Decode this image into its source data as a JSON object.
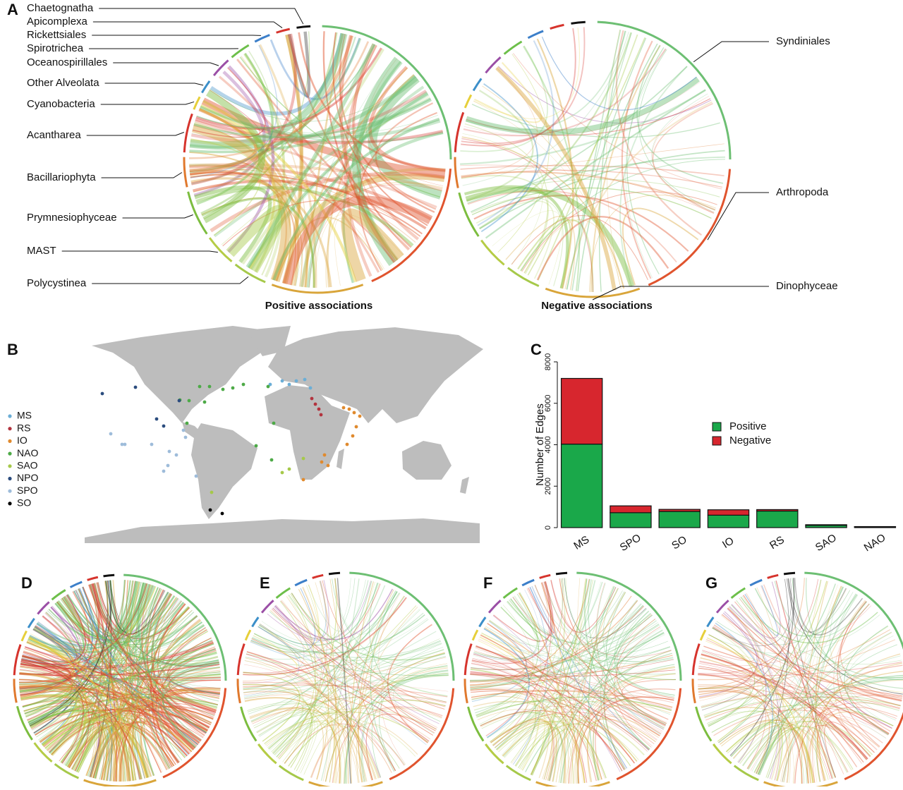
{
  "panel_labels": [
    "A",
    "B",
    "C",
    "D",
    "E",
    "F",
    "G"
  ],
  "panel_a": {
    "left_labels": [
      "Chaetognatha",
      "Apicomplexa",
      "Rickettsiales",
      "Spirotrichea",
      "Oceanospirillales",
      "Other Alveolata",
      "Cyanobacteria",
      "Acantharea",
      "Bacillariophyta",
      "Prymnesiophyceae",
      "MAST",
      "Polycystinea"
    ],
    "right_labels": [
      "Syndiniales",
      "Arthropoda",
      "Dinophyceae"
    ],
    "captions": [
      "Positive associations",
      "Negative associations"
    ]
  },
  "panel_b": {
    "legend": {
      "labels": [
        "MS",
        "RS",
        "IO",
        "NAO",
        "SAO",
        "NPO",
        "SPO",
        "SO"
      ],
      "colors": [
        "#6baed6",
        "#b2333e",
        "#e08a2e",
        "#4daa47",
        "#a6c94a",
        "#2b4c7e",
        "#9ebcda",
        "#000000"
      ]
    }
  },
  "chart_data": {
    "type": "bar",
    "stacked": true,
    "y_label": "Number of Edges",
    "categories": [
      "MS",
      "SPO",
      "SO",
      "IO",
      "RS",
      "SAO",
      "NAO"
    ],
    "series": [
      {
        "name": "Positive",
        "color": "#1aa84a",
        "values": [
          4030,
          720,
          780,
          600,
          800,
          110,
          40
        ]
      },
      {
        "name": "Negative",
        "color": "#d7262e",
        "values": [
          3170,
          330,
          100,
          260,
          70,
          30,
          10
        ]
      }
    ],
    "ylim": [
      0,
      8000
    ],
    "yticks": [
      0,
      2000,
      4000,
      6000,
      8000
    ],
    "legend": "right"
  }
}
